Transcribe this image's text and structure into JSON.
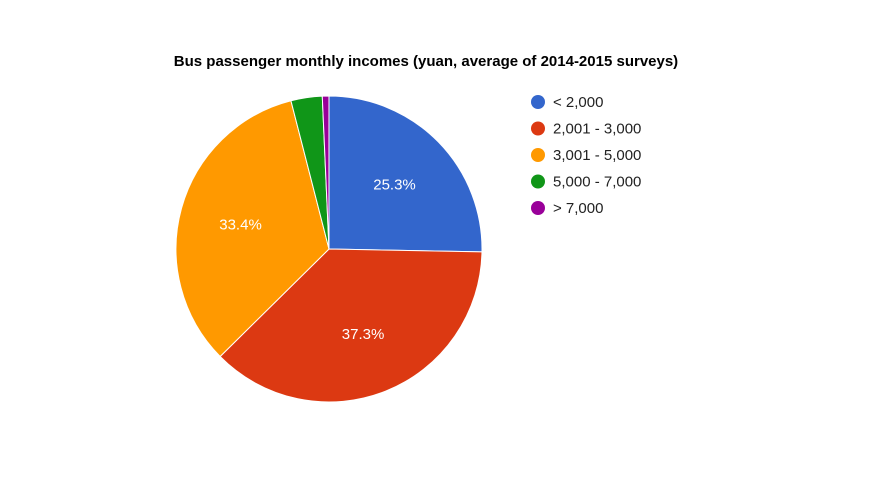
{
  "chart_data": {
    "type": "pie",
    "title": "Bus passenger monthly incomes (yuan, average of 2014-2015 surveys)",
    "categories": [
      "< 2,000",
      "2,001 - 3,000",
      "3,001 - 5,000",
      "5,000 - 7,000",
      "> 7,000"
    ],
    "values": [
      25.3,
      37.3,
      33.4,
      3.3,
      0.7
    ],
    "data_labels": [
      "25.3%",
      "37.3%",
      "33.4%",
      "",
      ""
    ],
    "colors": [
      "#3366cc",
      "#dc3912",
      "#ff9900",
      "#109618",
      "#990099"
    ],
    "legend_position": "right",
    "start_angle_deg": 0,
    "direction": "clockwise"
  }
}
